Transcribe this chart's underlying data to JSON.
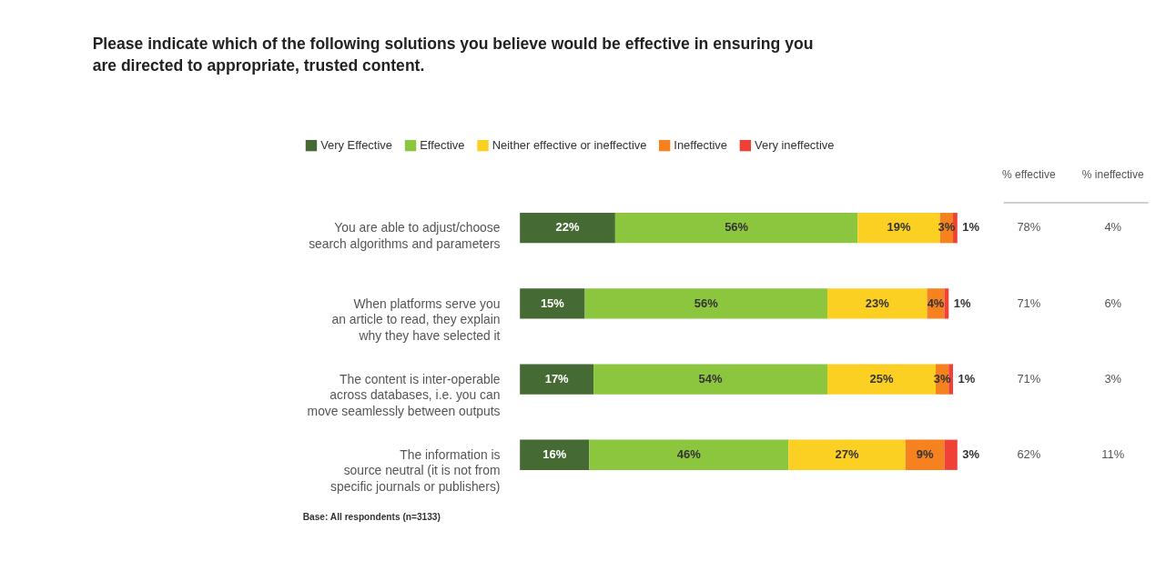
{
  "chart_data": {
    "type": "bar",
    "orientation": "horizontal",
    "stacked": true,
    "title": "Please indicate which of the following solutions you believe would be effective in ensuring you are directed to appropriate, trusted content.",
    "categories": [
      "You are able to adjust/choose\nsearch algorithms and parameters",
      "When platforms serve you\nan article to read, they explain\nwhy they have selected it",
      "The content is inter-operable\nacross databases, i.e. you can\nmove seamlessly between outputs",
      "The information is\nsource neutral (it is not from\nspecific journals or publishers)"
    ],
    "series": [
      {
        "name": "Very Effective",
        "color": "#466a34",
        "values": [
          22,
          15,
          17,
          16
        ],
        "value_labels": [
          "22%",
          "15%",
          "17%",
          "16%"
        ]
      },
      {
        "name": "Effective",
        "color": "#8cc63f",
        "values": [
          56,
          56,
          54,
          46
        ],
        "value_labels": [
          "56%",
          "56%",
          "54%",
          "46%"
        ]
      },
      {
        "name": "Neither effective or ineffective",
        "color": "#fcd022",
        "values": [
          19,
          23,
          25,
          27
        ],
        "value_labels": [
          "19%",
          "23%",
          "25%",
          "27%"
        ]
      },
      {
        "name": "Ineffective",
        "color": "#f5821f",
        "values": [
          3,
          4,
          3,
          9
        ],
        "value_labels": [
          "3%",
          "4%",
          "3%",
          "9%"
        ]
      },
      {
        "name": "Very ineffective",
        "color": "#ef4136",
        "values": [
          1,
          1,
          1,
          3
        ],
        "value_labels": [
          "1%",
          "1%",
          "1%",
          "3%"
        ]
      }
    ],
    "legend": "top left",
    "annotations": [
      "% effective",
      "% ineffective",
      "78%",
      "4%",
      "71%",
      "6%",
      "71%",
      "3%",
      "62%",
      "11%",
      "Base: All respondents (n=3133)"
    ]
  }
}
